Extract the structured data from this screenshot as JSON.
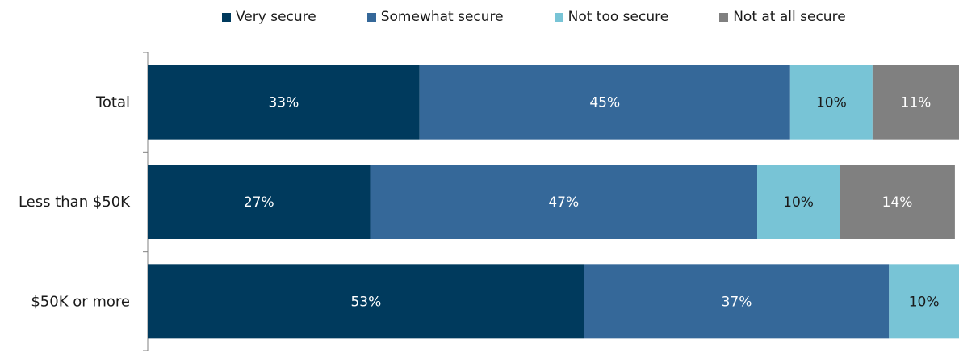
{
  "chart_data": {
    "type": "bar",
    "orientation": "horizontal",
    "stacked": true,
    "title": "",
    "xlabel": "",
    "ylabel": "",
    "xlim": [
      0,
      100
    ],
    "grid": false,
    "legend_position": "top",
    "categories": [
      "Total",
      "Less than $50K",
      "$50K or more"
    ],
    "series": [
      {
        "name": "Very secure",
        "values": [
          33,
          27,
          53
        ],
        "labels": [
          "33%",
          "27%",
          "53%"
        ],
        "color": "#003A5D",
        "label_color": "#ffffff"
      },
      {
        "name": "Somewhat secure",
        "values": [
          45,
          47,
          37
        ],
        "labels": [
          "45%",
          "47%",
          "37%"
        ],
        "color": "#356899",
        "label_color": "#ffffff"
      },
      {
        "name": "Not too secure",
        "values": [
          10,
          10,
          10
        ],
        "labels": [
          "10%",
          "10%",
          "10%"
        ],
        "color": "#78C4D6",
        "label_color": "#1a1a1a"
      },
      {
        "name": "Not at all secure",
        "values": [
          11,
          14,
          null
        ],
        "labels": [
          "11%",
          "14%",
          ""
        ],
        "color": "#808080",
        "label_color": "#ffffff"
      }
    ]
  }
}
